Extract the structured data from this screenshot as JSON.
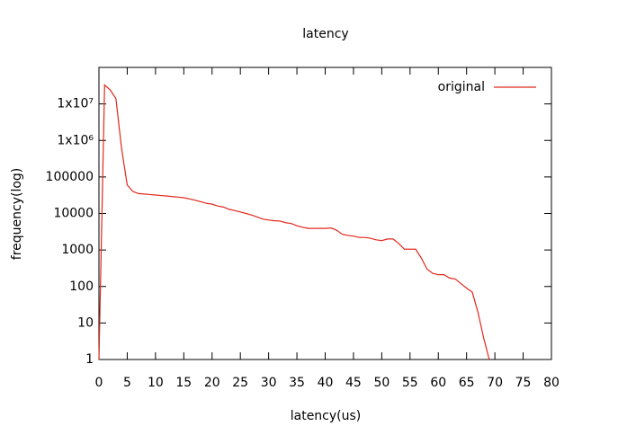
{
  "chart_data": {
    "type": "line",
    "title": "latency",
    "x_label": "latency(us)",
    "y_label": "frequency(log)",
    "x": [
      0,
      1,
      2,
      3,
      4,
      5,
      6,
      7,
      8,
      9,
      10,
      11,
      12,
      13,
      14,
      15,
      16,
      17,
      18,
      19,
      20,
      21,
      22,
      23,
      24,
      25,
      26,
      27,
      28,
      29,
      30,
      31,
      32,
      33,
      34,
      35,
      36,
      37,
      38,
      39,
      40,
      41,
      42,
      43,
      44,
      45,
      46,
      47,
      48,
      49,
      50,
      51,
      52,
      53,
      54,
      55,
      56,
      57,
      58,
      59,
      60,
      61,
      62,
      63,
      64,
      65,
      66,
      67,
      68,
      69
    ],
    "series": [
      {
        "name": "original",
        "color": "#e0281c",
        "values": [
          1,
          33000000,
          24000000,
          14000000,
          600000,
          60000,
          40000,
          35000,
          34000,
          33000,
          32000,
          31000,
          30000,
          29000,
          28000,
          27000,
          25000,
          23000,
          21000,
          19000,
          18000,
          16000,
          15000,
          13000,
          12000,
          11000,
          10000,
          9000,
          8000,
          7000,
          6600,
          6300,
          6200,
          5600,
          5300,
          4600,
          4200,
          3900,
          3900,
          3900,
          3900,
          4000,
          3500,
          2700,
          2500,
          2400,
          2200,
          2200,
          2100,
          1900,
          1800,
          2000,
          2000,
          1500,
          1050,
          1050,
          1050,
          600,
          300,
          230,
          210,
          210,
          170,
          160,
          120,
          90,
          70,
          20,
          4,
          1
        ]
      }
    ],
    "xlim": [
      0,
      80
    ],
    "xticks": [
      0,
      5,
      10,
      15,
      20,
      25,
      30,
      35,
      40,
      45,
      50,
      55,
      60,
      65,
      70,
      75,
      80
    ],
    "ylim": [
      1,
      100000000
    ],
    "y_scale": "log",
    "yticks": [
      1,
      10,
      100,
      1000,
      10000,
      100000,
      {
        "value": 1000000,
        "label": "1x10⁶"
      },
      {
        "value": 10000000,
        "label": "1x10⁷"
      }
    ],
    "legend": "top-right"
  }
}
